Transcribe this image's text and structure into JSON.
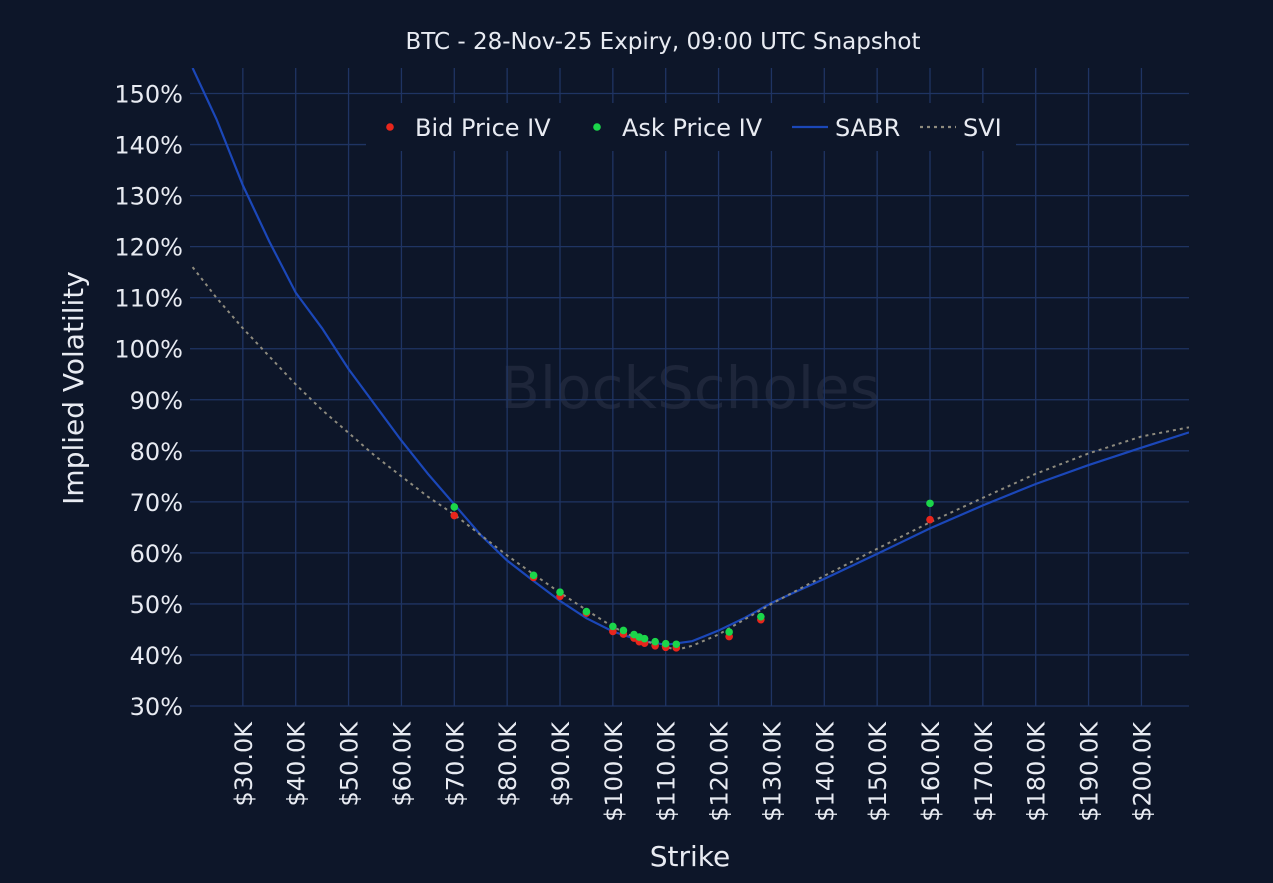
{
  "chart_data": {
    "type": "scatter",
    "title": "BTC - 28-Nov-25 Expiry, 09:00 UTC Snapshot",
    "xlabel": "Strike",
    "ylabel": "Implied Volatility",
    "watermark": "BlockScholes",
    "xlim": [
      20000,
      209000
    ],
    "ylim": [
      30,
      155
    ],
    "x_ticks": [
      30000,
      40000,
      50000,
      60000,
      70000,
      80000,
      90000,
      100000,
      110000,
      120000,
      130000,
      140000,
      150000,
      160000,
      170000,
      180000,
      190000,
      200000
    ],
    "x_tick_labels": [
      "$30.0K",
      "$40.0K",
      "$50.0K",
      "$60.0K",
      "$70.0K",
      "$80.0K",
      "$90.0K",
      "$100.0K",
      "$110.0K",
      "$120.0K",
      "$130.0K",
      "$140.0K",
      "$150.0K",
      "$160.0K",
      "$170.0K",
      "$180.0K",
      "$190.0K",
      "$200.0K"
    ],
    "y_ticks": [
      30,
      40,
      50,
      60,
      70,
      80,
      90,
      100,
      110,
      120,
      130,
      140,
      150
    ],
    "y_tick_labels": [
      "30%",
      "40%",
      "50%",
      "60%",
      "70%",
      "80%",
      "90%",
      "100%",
      "110%",
      "120%",
      "130%",
      "140%",
      "150%"
    ],
    "grid": true,
    "legend_position": "top-center",
    "series": [
      {
        "name": "Bid Price IV",
        "kind": "points",
        "color": "#e8261c",
        "points": [
          [
            70000,
            67.3
          ],
          [
            85000,
            55.2
          ],
          [
            90000,
            51.5
          ],
          [
            95000,
            48.2
          ],
          [
            100000,
            44.6
          ],
          [
            102000,
            44.1
          ],
          [
            104000,
            43.3
          ],
          [
            105000,
            42.6
          ],
          [
            106000,
            42.3
          ],
          [
            108000,
            41.8
          ],
          [
            110000,
            41.5
          ],
          [
            112000,
            41.4
          ],
          [
            122000,
            43.6
          ],
          [
            128000,
            46.9
          ],
          [
            160000,
            66.5
          ]
        ]
      },
      {
        "name": "Ask Price IV",
        "kind": "points",
        "color": "#1bd64a",
        "points": [
          [
            70000,
            69.0
          ],
          [
            85000,
            55.6
          ],
          [
            90000,
            52.3
          ],
          [
            95000,
            48.5
          ],
          [
            100000,
            45.6
          ],
          [
            102000,
            44.8
          ],
          [
            104000,
            44.0
          ],
          [
            105000,
            43.5
          ],
          [
            106000,
            43.2
          ],
          [
            108000,
            42.6
          ],
          [
            110000,
            42.2
          ],
          [
            112000,
            42.1
          ],
          [
            122000,
            44.5
          ],
          [
            128000,
            47.5
          ],
          [
            160000,
            69.7
          ]
        ]
      },
      {
        "name": "SABR",
        "kind": "line",
        "color": "#1b47b8",
        "dash": "solid",
        "points": [
          [
            20500,
            155
          ],
          [
            25000,
            145
          ],
          [
            30000,
            132
          ],
          [
            35000,
            121
          ],
          [
            40000,
            111
          ],
          [
            45000,
            104
          ],
          [
            50000,
            96
          ],
          [
            55000,
            89
          ],
          [
            60000,
            82
          ],
          [
            65000,
            75.5
          ],
          [
            70000,
            69.5
          ],
          [
            75000,
            63.5
          ],
          [
            80000,
            58.5
          ],
          [
            85000,
            54.5
          ],
          [
            90000,
            50.6
          ],
          [
            95000,
            47.2
          ],
          [
            100000,
            44.6
          ],
          [
            105000,
            42.9
          ],
          [
            110000,
            42.0
          ],
          [
            115000,
            42.7
          ],
          [
            120000,
            44.8
          ],
          [
            125000,
            47.3
          ],
          [
            130000,
            50.2
          ],
          [
            140000,
            54.9
          ],
          [
            150000,
            59.8
          ],
          [
            160000,
            64.8
          ],
          [
            170000,
            69.3
          ],
          [
            180000,
            73.5
          ],
          [
            190000,
            77.2
          ],
          [
            200000,
            80.6
          ],
          [
            209000,
            83.6
          ]
        ]
      },
      {
        "name": "SVI",
        "kind": "line",
        "color": "#8e8b7e",
        "dash": "dotted",
        "points": [
          [
            20500,
            116
          ],
          [
            25000,
            110
          ],
          [
            30000,
            104
          ],
          [
            35000,
            98.5
          ],
          [
            40000,
            93
          ],
          [
            45000,
            88
          ],
          [
            50000,
            83.5
          ],
          [
            55000,
            79
          ],
          [
            60000,
            75
          ],
          [
            65000,
            71
          ],
          [
            70000,
            67.5
          ],
          [
            75000,
            63.5
          ],
          [
            80000,
            59.5
          ],
          [
            85000,
            55.8
          ],
          [
            90000,
            52.2
          ],
          [
            95000,
            48.8
          ],
          [
            100000,
            45.5
          ],
          [
            105000,
            43.0
          ],
          [
            110000,
            41.6
          ],
          [
            112000,
            41.0
          ],
          [
            115000,
            41.8
          ],
          [
            120000,
            44.0
          ],
          [
            125000,
            47.0
          ],
          [
            130000,
            50.0
          ],
          [
            140000,
            55.5
          ],
          [
            150000,
            60.8
          ],
          [
            160000,
            66.0
          ],
          [
            170000,
            70.8
          ],
          [
            180000,
            75.5
          ],
          [
            190000,
            79.5
          ],
          [
            200000,
            82.8
          ],
          [
            209000,
            84.6
          ]
        ]
      }
    ]
  }
}
